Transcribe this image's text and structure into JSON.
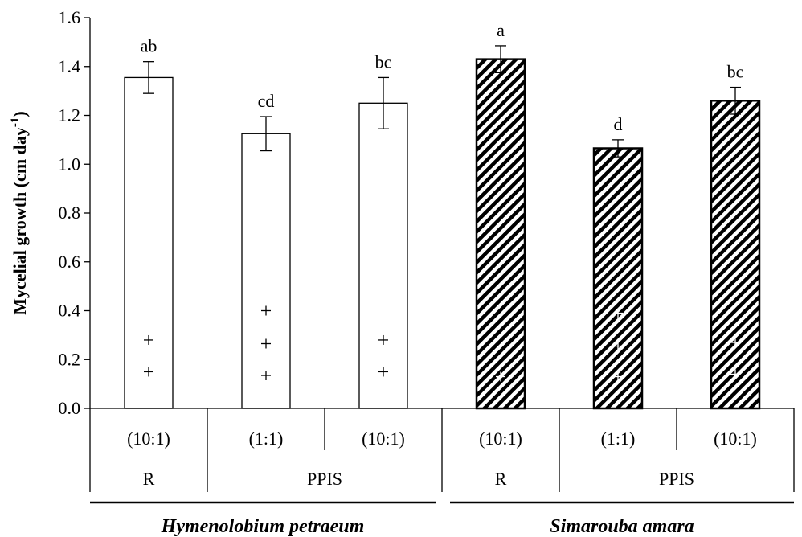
{
  "chart_data": {
    "type": "bar",
    "ylabel": "Mycelial growth (cm day",
    "ylabel_sup": "-1",
    "ylabel_end": ")",
    "ylim": [
      0,
      1.6
    ],
    "yticks": [
      "0.0",
      "0.2",
      "0.4",
      "0.6",
      "0.8",
      "1.0",
      "1.2",
      "1.4",
      "1.6"
    ],
    "grid": false,
    "bars": [
      {
        "ratio": "(10:1)",
        "value": 1.355,
        "error": 0.065,
        "letter": "ab",
        "pattern": "open",
        "plus": [
          0.28,
          0.15
        ]
      },
      {
        "ratio": "(1:1)",
        "value": 1.125,
        "error": 0.07,
        "letter": "cd",
        "pattern": "open",
        "plus": [
          0.4,
          0.265,
          0.135
        ]
      },
      {
        "ratio": "(10:1)",
        "value": 1.25,
        "error": 0.105,
        "letter": "bc",
        "pattern": "open",
        "plus": [
          0.28,
          0.15
        ]
      },
      {
        "ratio": "(10:1)",
        "value": 1.43,
        "error": 0.055,
        "letter": "a",
        "pattern": "hatched",
        "plus": [
          0.13
        ]
      },
      {
        "ratio": "(1:1)",
        "value": 1.065,
        "error": 0.035,
        "letter": "d",
        "pattern": "hatched",
        "plus": [
          0.39,
          0.255,
          0.13
        ]
      },
      {
        "ratio": "(10:1)",
        "value": 1.26,
        "error": 0.055,
        "letter": "bc",
        "pattern": "hatched",
        "plus": [
          0.27,
          0.14
        ]
      }
    ],
    "groups": [
      {
        "label": "R",
        "bars": [
          0
        ]
      },
      {
        "label": "PPIS",
        "bars": [
          1,
          2
        ]
      },
      {
        "label": "R",
        "bars": [
          3
        ]
      },
      {
        "label": "PPIS",
        "bars": [
          4,
          5
        ]
      }
    ],
    "species": [
      {
        "label": "Hymenolobium petraeum",
        "bars": [
          0,
          1,
          2
        ]
      },
      {
        "label": "Simarouba amara",
        "bars": [
          3,
          4,
          5
        ]
      }
    ]
  }
}
